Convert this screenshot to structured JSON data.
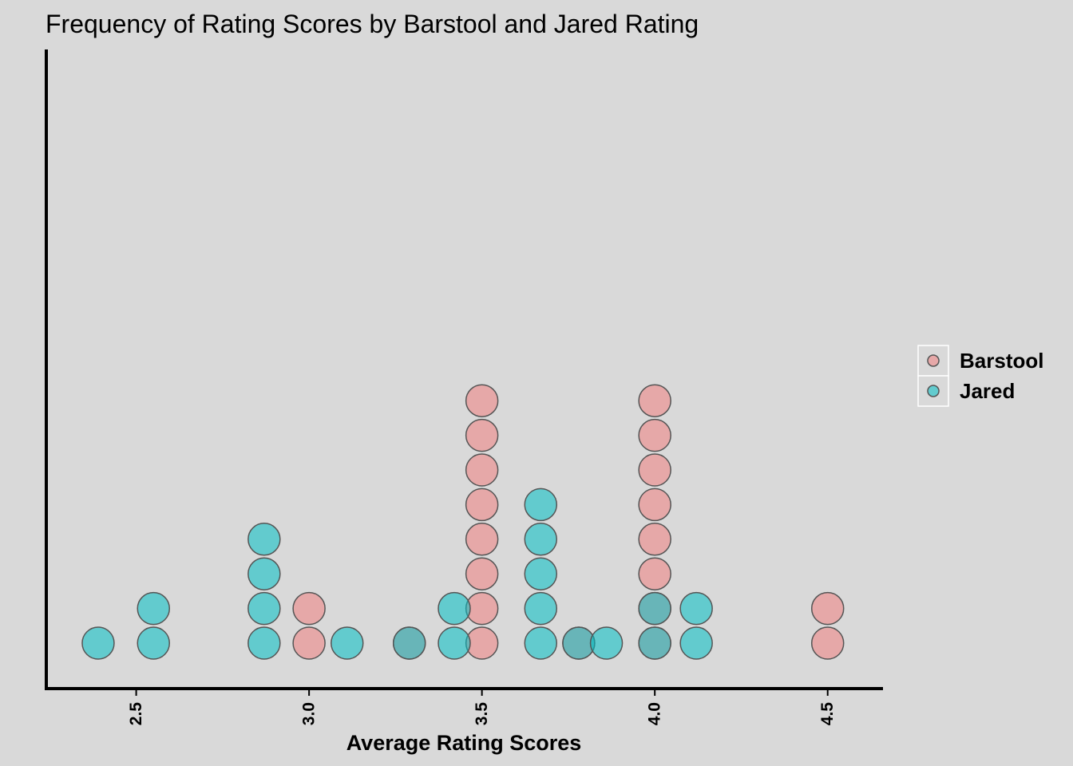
{
  "chart_data": {
    "type": "scatter",
    "subtype": "dotplot",
    "title": "Frequency of Rating Scores by Barstool and Jared Rating",
    "xlabel": "Average Rating Scores",
    "ylabel": "",
    "xlim": [
      2.24,
      4.66
    ],
    "x_ticks": [
      "2.5",
      "3.0",
      "3.5",
      "4.0",
      "4.5"
    ],
    "grid": false,
    "legend_position": "right",
    "series": [
      {
        "name": "Barstool",
        "color": "#f08080",
        "points": [
          {
            "x": 3.0,
            "count": 2
          },
          {
            "x": 3.29,
            "count": 1
          },
          {
            "x": 3.5,
            "count": 8
          },
          {
            "x": 3.78,
            "count": 1
          },
          {
            "x": 4.0,
            "count": 8
          },
          {
            "x": 4.5,
            "count": 2
          }
        ]
      },
      {
        "name": "Jared",
        "color": "#00bfc4",
        "points": [
          {
            "x": 2.39,
            "count": 1
          },
          {
            "x": 2.55,
            "count": 2
          },
          {
            "x": 2.87,
            "count": 4
          },
          {
            "x": 3.11,
            "count": 1
          },
          {
            "x": 3.29,
            "count": 1
          },
          {
            "x": 3.42,
            "count": 2
          },
          {
            "x": 3.67,
            "count": 5
          },
          {
            "x": 3.78,
            "count": 1
          },
          {
            "x": 3.86,
            "count": 1
          },
          {
            "x": 4.0,
            "count": 2
          },
          {
            "x": 4.12,
            "count": 2
          }
        ]
      }
    ]
  }
}
